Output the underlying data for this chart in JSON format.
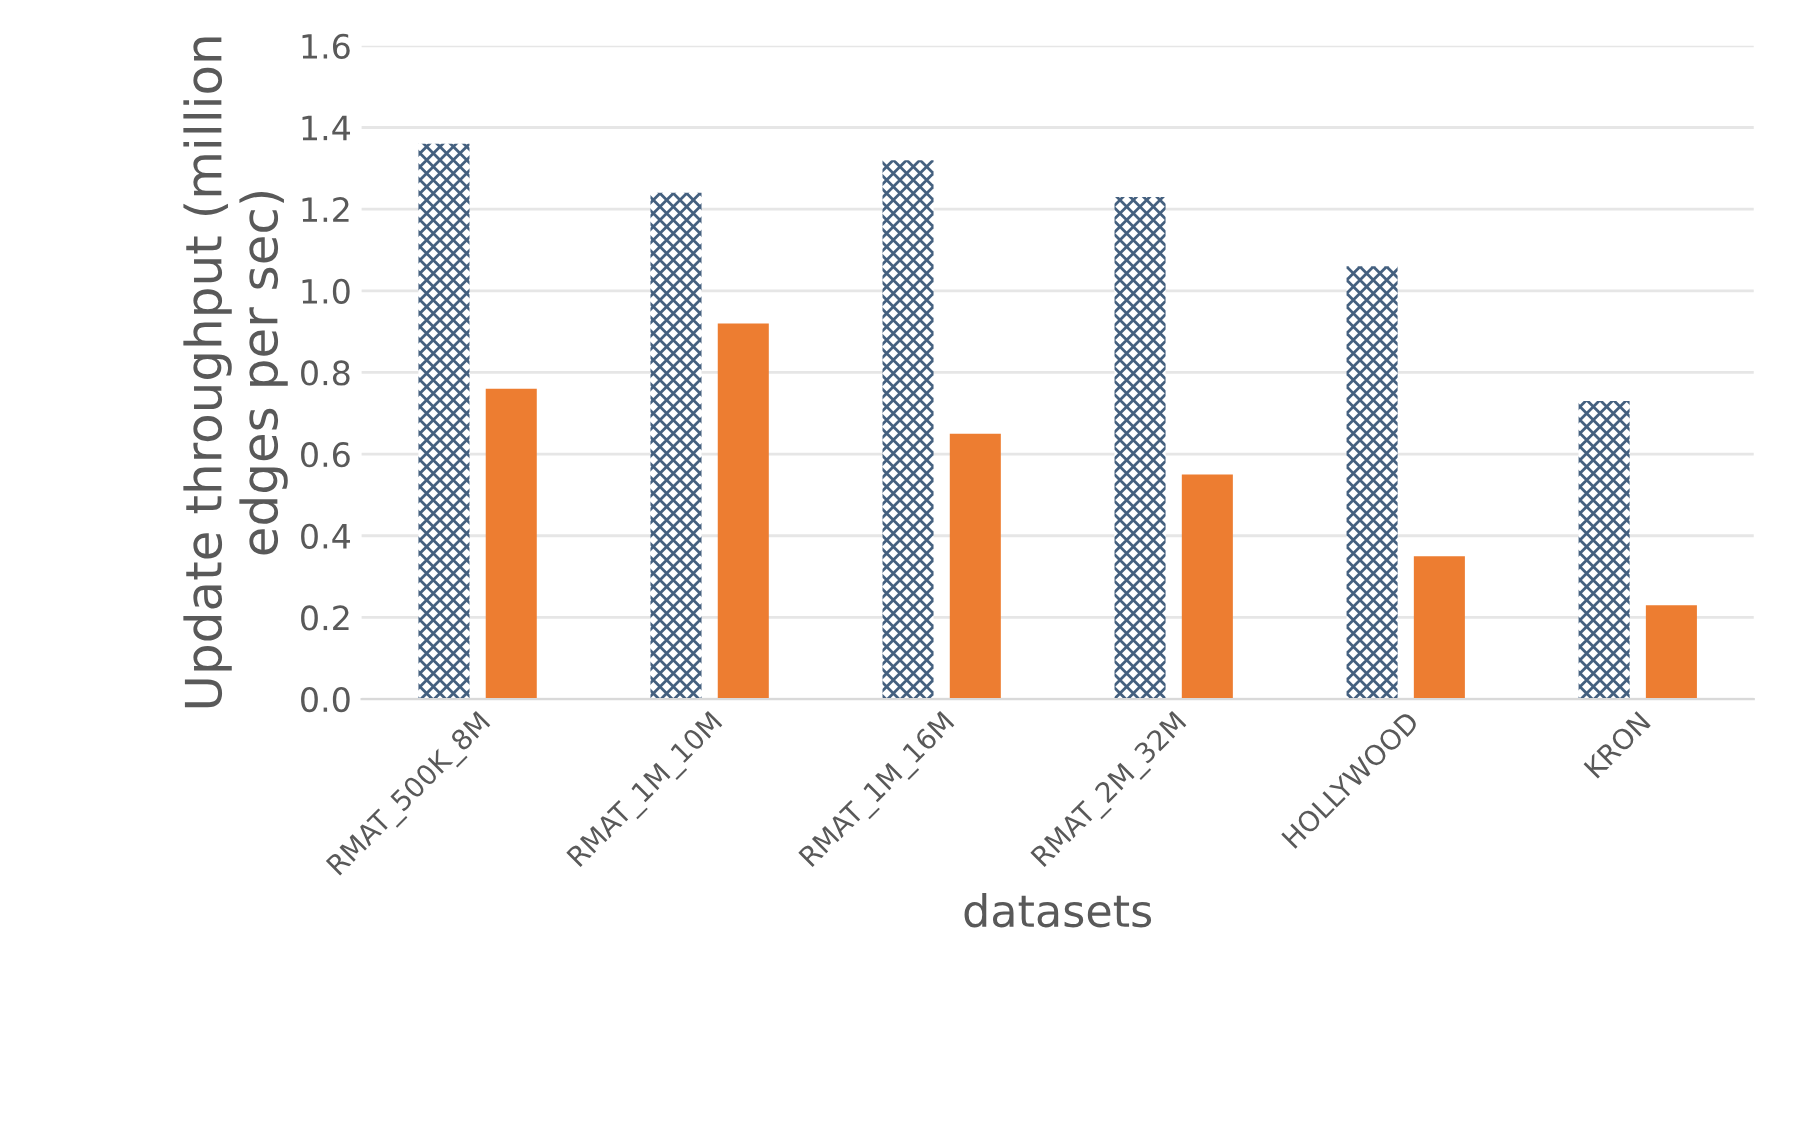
{
  "chart_data": {
    "type": "bar",
    "xlabel": "datasets",
    "ylabel": "Update throughput (million edges per sec)",
    "categories": [
      "RMAT_500K_8M",
      "RMAT_1M_10M",
      "RMAT_1M_16M",
      "RMAT_2M_32M",
      "HOLLYWOOD",
      "KRON"
    ],
    "series": [
      {
        "color": "#44607f",
        "values": [
          1.36,
          1.24,
          1.32,
          1.23,
          1.06,
          0.73
        ]
      },
      {
        "color": "#ed7d31",
        "values": [
          0.76,
          0.92,
          0.65,
          0.55,
          0.35,
          0.23
        ]
      }
    ],
    "ylim": [
      0,
      1.6
    ],
    "yticks": [
      {
        "value": 0,
        "label": "0.0"
      },
      {
        "value": 0.2,
        "label": "0.2"
      },
      {
        "value": 0.4,
        "label": "0.4"
      },
      {
        "value": 0.6,
        "label": "0.6"
      },
      {
        "value": 0.8,
        "label": "0.8"
      },
      {
        "value": 1.0,
        "label": "1.0"
      },
      {
        "value": 1.2,
        "label": "1.2"
      },
      {
        "value": 1.4,
        "label": "1.4"
      },
      {
        "value": 1.6,
        "label": "1.6"
      }
    ],
    "grid": "y"
  }
}
